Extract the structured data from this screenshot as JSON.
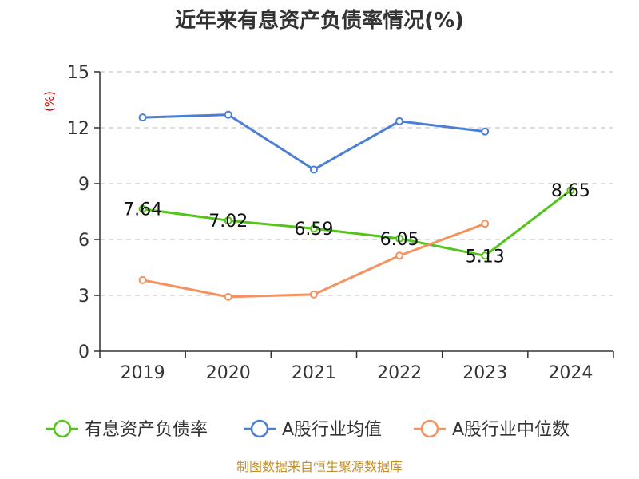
{
  "chart_data": {
    "type": "line",
    "title": "近年来有息资产负债率情况(%)",
    "ylabel": "(%)",
    "xlabel": "",
    "ylim": [
      0,
      15
    ],
    "yticks": [
      0,
      3,
      6,
      9,
      12,
      15
    ],
    "categories": [
      "2019",
      "2020",
      "2021",
      "2022",
      "2023",
      "2024"
    ],
    "grid": true,
    "legend_position": "bottom",
    "series": [
      {
        "name": "有息资产负债率",
        "values": [
          7.64,
          7.02,
          6.59,
          6.05,
          5.13,
          8.65
        ],
        "labels": [
          "7.64",
          "7.02",
          "6.59",
          "6.05",
          "5.13",
          "8.65"
        ],
        "color": "#52c41a"
      },
      {
        "name": "A股行业均值",
        "values": [
          12.55,
          12.7,
          9.75,
          12.35,
          11.8,
          null
        ],
        "color": "#4a7fd6"
      },
      {
        "name": "A股行业中位数",
        "values": [
          3.82,
          2.92,
          3.05,
          5.13,
          6.85,
          null
        ],
        "color": "#f5925e"
      }
    ],
    "source": "制图数据来自恒生聚源数据库"
  }
}
